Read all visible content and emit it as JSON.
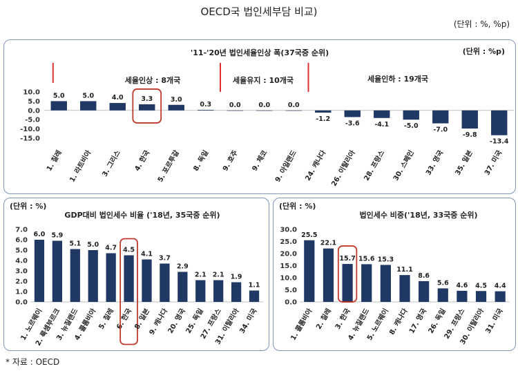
{
  "title": "OECD국 법인세부담 비교)",
  "unit_top": "(단위 : %, %p)",
  "footer": "* 자료 : OECD",
  "chart_data": [
    {
      "type": "bar",
      "title": "'11-'20년 법인세율인상 폭(37국중 순위)",
      "unit": "(단위 : %p)",
      "ylim": [
        -15,
        10
      ],
      "yticks": [
        "10.0",
        "5.0",
        "0.0",
        "-5.0",
        "-10.0",
        "-15.0"
      ],
      "categories": [
        "1. 칠레",
        "1. 라트비아",
        "3. 그리스",
        "4. 한국",
        "5. 포르투갈",
        "8. 독일",
        "9. 호주",
        "9. 체코",
        "9. 아일랜드",
        "24. 캐나다",
        "26. 이탈리아",
        "28. 프랑스",
        "30. 스페인",
        "33. 영국",
        "35. 일본",
        "37. 미국"
      ],
      "values": [
        5.0,
        5.0,
        4.0,
        3.3,
        3.0,
        0.3,
        0.0,
        0.0,
        0.0,
        -1.2,
        -3.6,
        -4.1,
        -5.0,
        -7.0,
        -9.8,
        -13.4
      ],
      "labels": [
        "5.0",
        "5.0",
        "4.0",
        "3.3",
        "3.0",
        "0.3",
        "0.0",
        "0.0",
        "0.0",
        "-1.2",
        "-3.6",
        "-4.1",
        "-5.0",
        "-7.0",
        "-9.8",
        "-13.4"
      ],
      "groups": [
        {
          "label": "세율인상 : 8개국"
        },
        {
          "label": "세율유지 : 10개국"
        },
        {
          "label": "세율인하 : 19개국"
        }
      ],
      "highlight": "4. 한국"
    },
    {
      "type": "bar",
      "title": "GDP대비 법인세수 비율 ('18년, 35국중 순위)",
      "unit": "(단위 : %)",
      "ylim": [
        0,
        7
      ],
      "yticks": [
        "7.0",
        "6.0",
        "5.0",
        "4.0",
        "3.0",
        "2.0",
        "1.0",
        "0.0"
      ],
      "categories": [
        "1. 노르웨이",
        "2. 룩셈부르크",
        "3. 뉴질랜드",
        "4. 콜롬비아",
        "5. 칠레",
        "6. 한국",
        "8. 일본",
        "9. 캐나다",
        "20. 영국",
        "25. 독일",
        "27. 프랑스",
        "31. 이탈리아",
        "34. 미국"
      ],
      "values": [
        6.0,
        5.9,
        5.1,
        5.0,
        4.7,
        4.5,
        4.1,
        3.7,
        2.9,
        2.1,
        2.1,
        1.9,
        1.1
      ],
      "labels": [
        "6.0",
        "5.9",
        "5.1",
        "5.0",
        "4.7",
        "4.5",
        "4.1",
        "3.7",
        "2.9",
        "2.1",
        "2.1",
        "1.9",
        "1.1"
      ],
      "highlight": "6. 한국"
    },
    {
      "type": "bar",
      "title": "법인세수 비중('18년, 33국중 순위)",
      "unit": "(단위 : %)",
      "ylim": [
        0,
        30
      ],
      "yticks": [
        "30.0",
        "25.0",
        "20.0",
        "15.0",
        "10.0",
        "5.0",
        "0.0"
      ],
      "categories": [
        "1. 콜롬비아",
        "2. 칠레",
        "3. 한국",
        "4. 뉴질랜드",
        "5. 노르웨이",
        "8. 캐나다",
        "17. 영국",
        "26. 독일",
        "29. 프랑스",
        "30. 이탈리아",
        "31. 미국"
      ],
      "values": [
        25.5,
        22.1,
        15.7,
        15.6,
        15.3,
        11.1,
        8.6,
        5.6,
        4.6,
        4.5,
        4.4
      ],
      "labels": [
        "25.5",
        "22.1",
        "15.7",
        "15.6",
        "15.3",
        "11.1",
        "8.6",
        "5.6",
        "4.6",
        "4.5",
        "4.4"
      ],
      "highlight": "3. 한국"
    }
  ],
  "colors": {
    "bar": "#1f3864",
    "highlight": "#c0392b",
    "divider": "#e03030",
    "border": "#7f95b8",
    "axis": "#bfbfbf"
  }
}
